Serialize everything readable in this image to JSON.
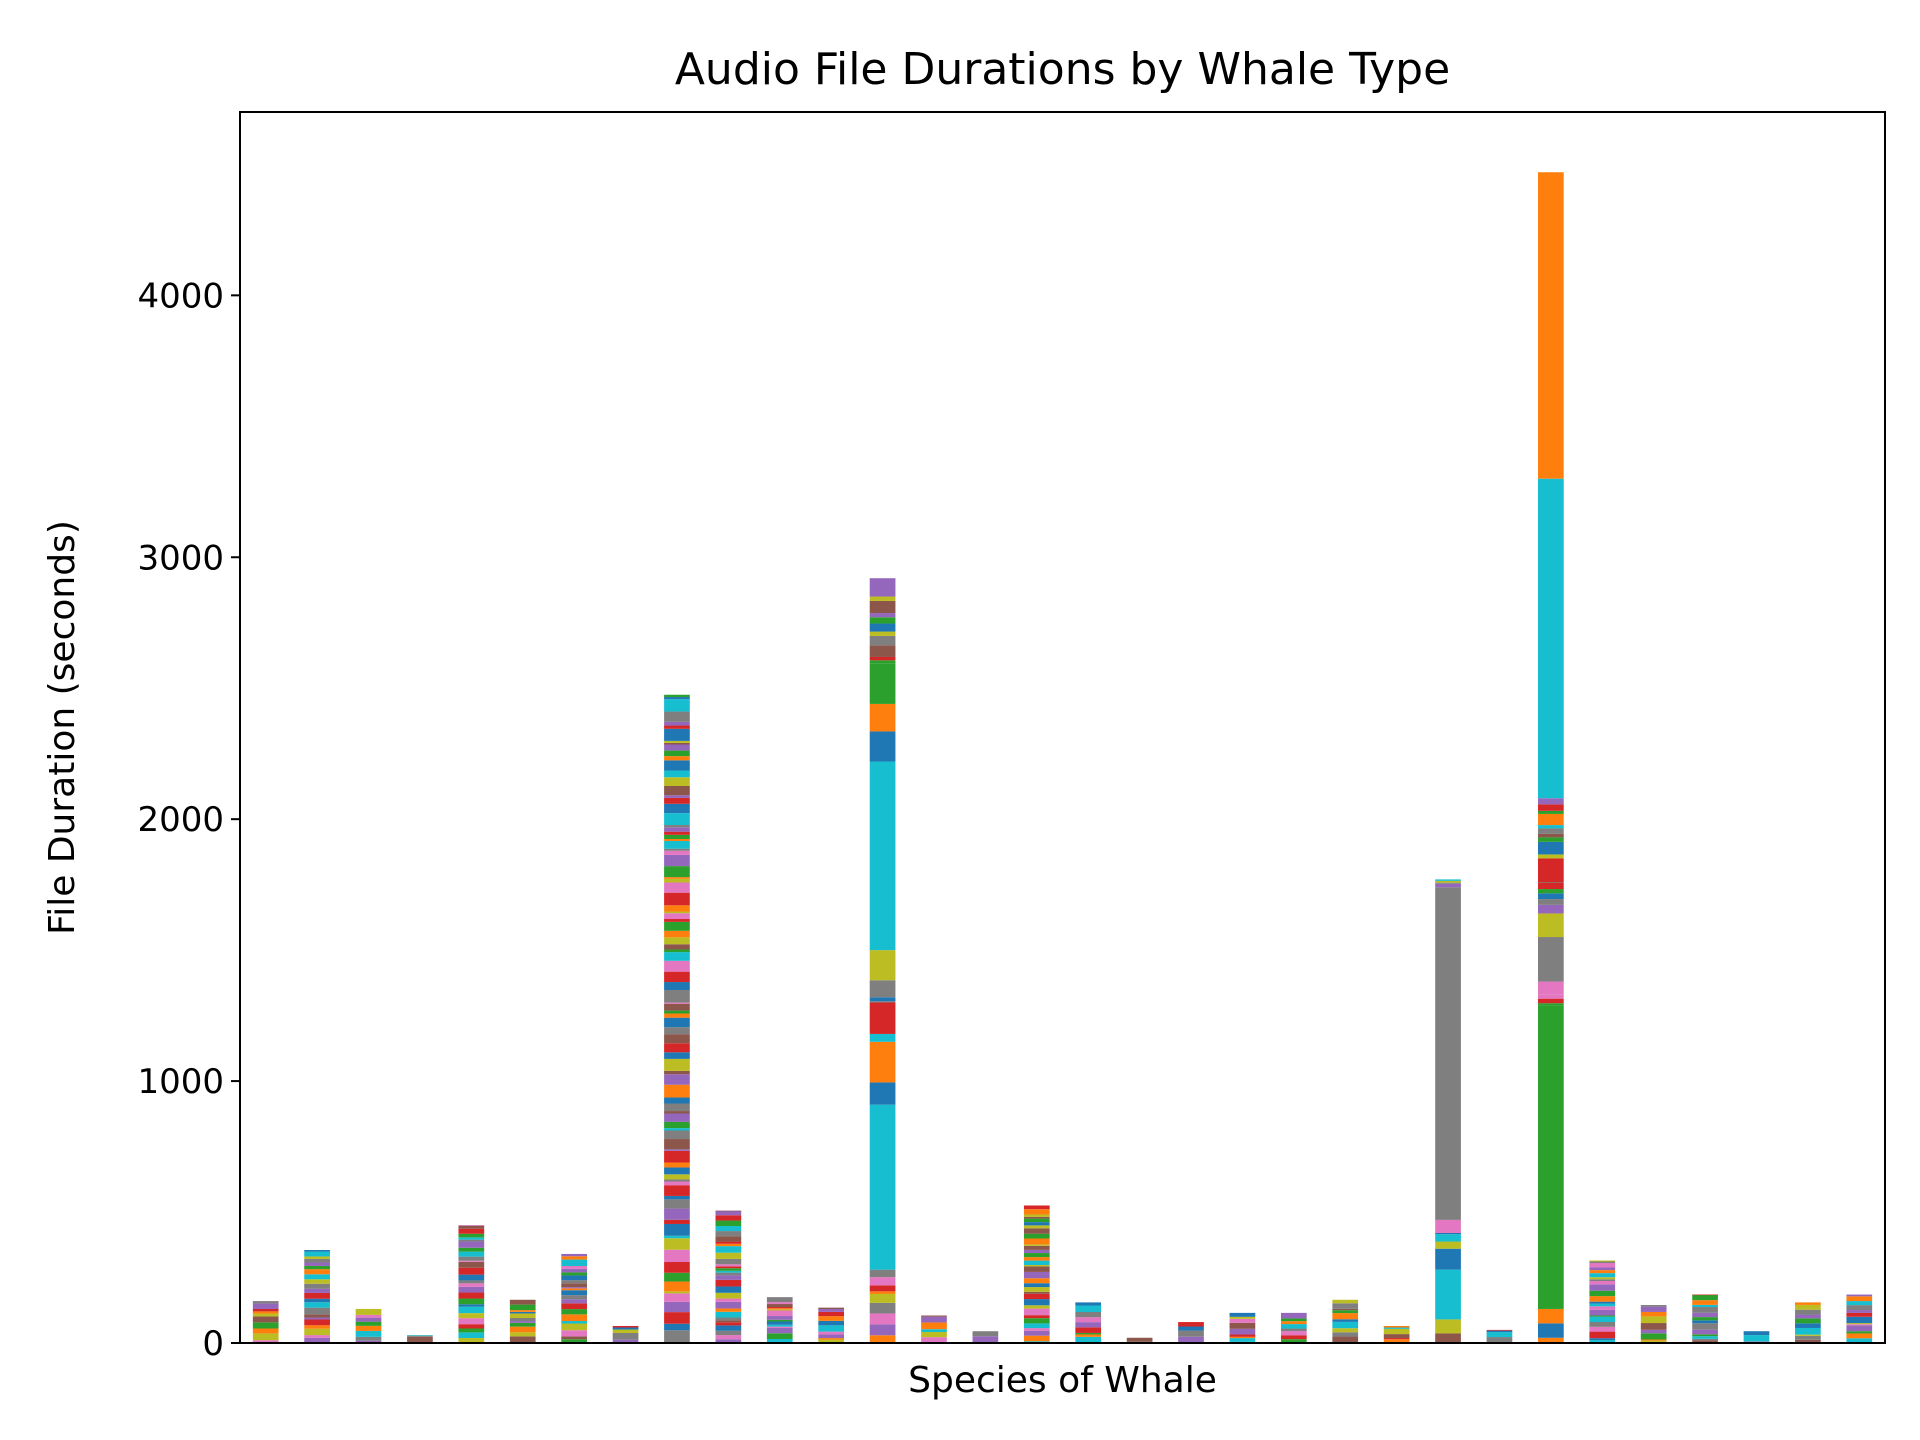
{
  "chart_data": {
    "type": "bar",
    "stacked": true,
    "title": "Audio File Durations by Whale Type",
    "xlabel": "Species of Whale",
    "ylabel": "File Duration (seconds)",
    "ylim": [
      0,
      4700
    ],
    "yticks": [
      0,
      1000,
      2000,
      3000,
      4000
    ],
    "xtick_labels_visible": false,
    "legend": "none",
    "grid": false,
    "segment_palette": [
      "#1f77b4",
      "#ff7f0e",
      "#2ca02c",
      "#d62728",
      "#9467bd",
      "#8c564b",
      "#e377c2",
      "#7f7f7f",
      "#bcbd22",
      "#17becf"
    ],
    "species_totals": [
      160,
      355,
      130,
      30,
      450,
      165,
      340,
      65,
      2475,
      505,
      175,
      135,
      2920,
      105,
      45,
      525,
      155,
      20,
      80,
      115,
      115,
      165,
      65,
      1770,
      50,
      4470,
      315,
      145,
      185,
      45,
      155,
      185
    ],
    "highlighted_segments": [
      {
        "species_index": 12,
        "segments": [
          {
            "from": 280,
            "to": 910,
            "color": "#17becf"
          },
          {
            "from": 910,
            "to": 995,
            "color": "#1f77b4"
          },
          {
            "from": 995,
            "to": 1150,
            "color": "#ff7f0e"
          },
          {
            "from": 1180,
            "to": 1300,
            "color": "#d62728"
          },
          {
            "from": 1320,
            "to": 1385,
            "color": "#7f7f7f"
          },
          {
            "from": 1385,
            "to": 1500,
            "color": "#bcbd22"
          },
          {
            "from": 1500,
            "to": 2220,
            "color": "#17becf"
          },
          {
            "from": 2220,
            "to": 2335,
            "color": "#1f77b4"
          },
          {
            "from": 2335,
            "to": 2440,
            "color": "#ff7f0e"
          },
          {
            "from": 2440,
            "to": 2595,
            "color": "#2ca02c"
          },
          {
            "from": 2850,
            "to": 2920,
            "color": "#9467bd"
          }
        ]
      },
      {
        "species_index": 23,
        "segments": [
          {
            "from": 40,
            "to": 90,
            "color": "#bcbd22"
          },
          {
            "from": 90,
            "to": 280,
            "color": "#17becf"
          },
          {
            "from": 280,
            "to": 360,
            "color": "#1f77b4"
          },
          {
            "from": 420,
            "to": 470,
            "color": "#e377c2"
          },
          {
            "from": 470,
            "to": 1740,
            "color": "#7f7f7f"
          }
        ]
      },
      {
        "species_index": 25,
        "segments": [
          {
            "from": 20,
            "to": 75,
            "color": "#1f77b4"
          },
          {
            "from": 75,
            "to": 130,
            "color": "#ff7f0e"
          },
          {
            "from": 130,
            "to": 1290,
            "color": "#2ca02c"
          },
          {
            "from": 1330,
            "to": 1380,
            "color": "#e377c2"
          },
          {
            "from": 1380,
            "to": 1550,
            "color": "#7f7f7f"
          },
          {
            "from": 1550,
            "to": 1640,
            "color": "#bcbd22"
          },
          {
            "from": 1760,
            "to": 1850,
            "color": "#d62728"
          },
          {
            "from": 2080,
            "to": 3300,
            "color": "#17becf"
          },
          {
            "from": 3300,
            "to": 4470,
            "color": "#ff7f0e"
          }
        ]
      }
    ]
  }
}
